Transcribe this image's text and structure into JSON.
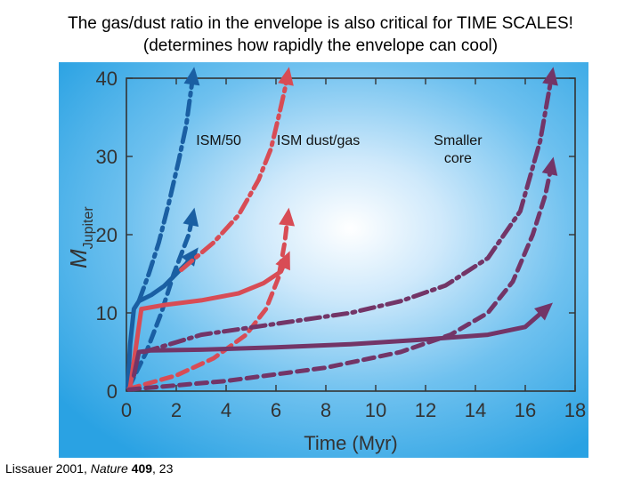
{
  "slide": {
    "title_line1": "The gas/dust ratio in the envelope is also critical for TIME SCALES!",
    "title_line2": "(determines how rapidly the envelope can cool)",
    "citation_author": "Lissauer 2001, ",
    "citation_journal": "Nature",
    "citation_volume": "409",
    "citation_page": ", 23"
  },
  "chart_data": {
    "type": "line",
    "title": "",
    "xlabel": "Time (Myr)",
    "ylabel_main": "M",
    "ylabel_sub": "Jupiter",
    "xlim": [
      0,
      18
    ],
    "ylim": [
      0,
      40
    ],
    "xticks": [
      0,
      2,
      4,
      6,
      8,
      10,
      12,
      14,
      16,
      18
    ],
    "yticks": [
      0,
      10,
      20,
      30,
      40
    ],
    "annotations": [
      {
        "text": "ISM/50",
        "x": 3.7,
        "y": 31.5
      },
      {
        "text": "ISM dust/gas",
        "x": 7.7,
        "y": 31.5
      },
      {
        "text": "Smaller",
        "x": 13.3,
        "y": 31.5
      },
      {
        "text": "core",
        "x": 13.3,
        "y": 29.2
      }
    ],
    "colors": {
      "blue": "#1a5fa3",
      "red": "#d84c55",
      "purple": "#733567"
    },
    "series": [
      {
        "name": "ISM/50 solid core",
        "color": "blue",
        "style": "solid",
        "x": [
          0.05,
          0.15,
          0.3,
          0.5,
          1.0,
          1.5,
          2.0,
          2.4,
          2.8
        ],
        "y": [
          0.5,
          6.0,
          10.5,
          11.5,
          12.3,
          13.4,
          15.0,
          16.3,
          18.0
        ]
      },
      {
        "name": "ISM/50 dash-dot",
        "color": "blue",
        "style": "dashdot",
        "x": [
          0.5,
          0.9,
          1.3,
          1.7,
          2.1,
          2.4,
          2.55,
          2.7
        ],
        "y": [
          11.5,
          15.0,
          19.0,
          24.0,
          29.5,
          34.0,
          37.5,
          41.0
        ]
      },
      {
        "name": "ISM/50 dashed",
        "color": "blue",
        "style": "dashed",
        "x": [
          0.1,
          0.8,
          1.4,
          1.9,
          2.2,
          2.5,
          2.7
        ],
        "y": [
          0.5,
          5.0,
          10.0,
          15.0,
          17.5,
          20.0,
          23.0
        ]
      },
      {
        "name": "ISM dust/gas solid",
        "color": "red",
        "style": "solid",
        "x": [
          0.15,
          0.6,
          1.5,
          3.0,
          4.5,
          5.5,
          6.2,
          6.5
        ],
        "y": [
          0.5,
          10.5,
          11.0,
          11.6,
          12.5,
          13.8,
          15.3,
          17.5
        ]
      },
      {
        "name": "ISM dust/gas dash-dot",
        "color": "red",
        "style": "dashdot",
        "x": [
          2.2,
          3.5,
          4.5,
          5.3,
          5.8,
          6.1,
          6.35,
          6.5
        ],
        "y": [
          15.5,
          19.0,
          22.5,
          27.0,
          31.0,
          35.0,
          38.5,
          41.0
        ]
      },
      {
        "name": "ISM dust/gas dashed",
        "color": "red",
        "style": "dashed",
        "x": [
          0.1,
          2.0,
          3.5,
          4.8,
          5.6,
          6.1,
          6.35,
          6.5
        ],
        "y": [
          0.3,
          2.0,
          4.2,
          7.2,
          10.5,
          14.5,
          19.0,
          23.0
        ]
      },
      {
        "name": "Smaller core solid",
        "color": "purple",
        "style": "solid",
        "x": [
          0.3,
          0.5,
          1.0,
          3.0,
          6.0,
          9.0,
          12.0,
          14.5,
          16.0,
          17.0
        ],
        "y": [
          2.0,
          5.0,
          5.2,
          5.3,
          5.6,
          6.0,
          6.6,
          7.2,
          8.2,
          11.0
        ]
      },
      {
        "name": "Smaller core dash-dot",
        "color": "purple",
        "style": "dashdot",
        "x": [
          0.7,
          3.0,
          6.0,
          9.0,
          11.0,
          12.8,
          14.5,
          15.8,
          16.6,
          17.1
        ],
        "y": [
          5.0,
          7.2,
          8.6,
          10.0,
          11.5,
          13.5,
          17.0,
          23.0,
          32.0,
          41.0
        ]
      },
      {
        "name": "Smaller core dashed",
        "color": "purple",
        "style": "dashed",
        "x": [
          0.1,
          4.0,
          8.0,
          11.0,
          13.0,
          14.5,
          15.5,
          16.3,
          16.8,
          17.1
        ],
        "y": [
          0.2,
          1.3,
          3.0,
          5.0,
          7.2,
          10.0,
          14.0,
          20.0,
          25.0,
          29.5
        ]
      }
    ]
  }
}
